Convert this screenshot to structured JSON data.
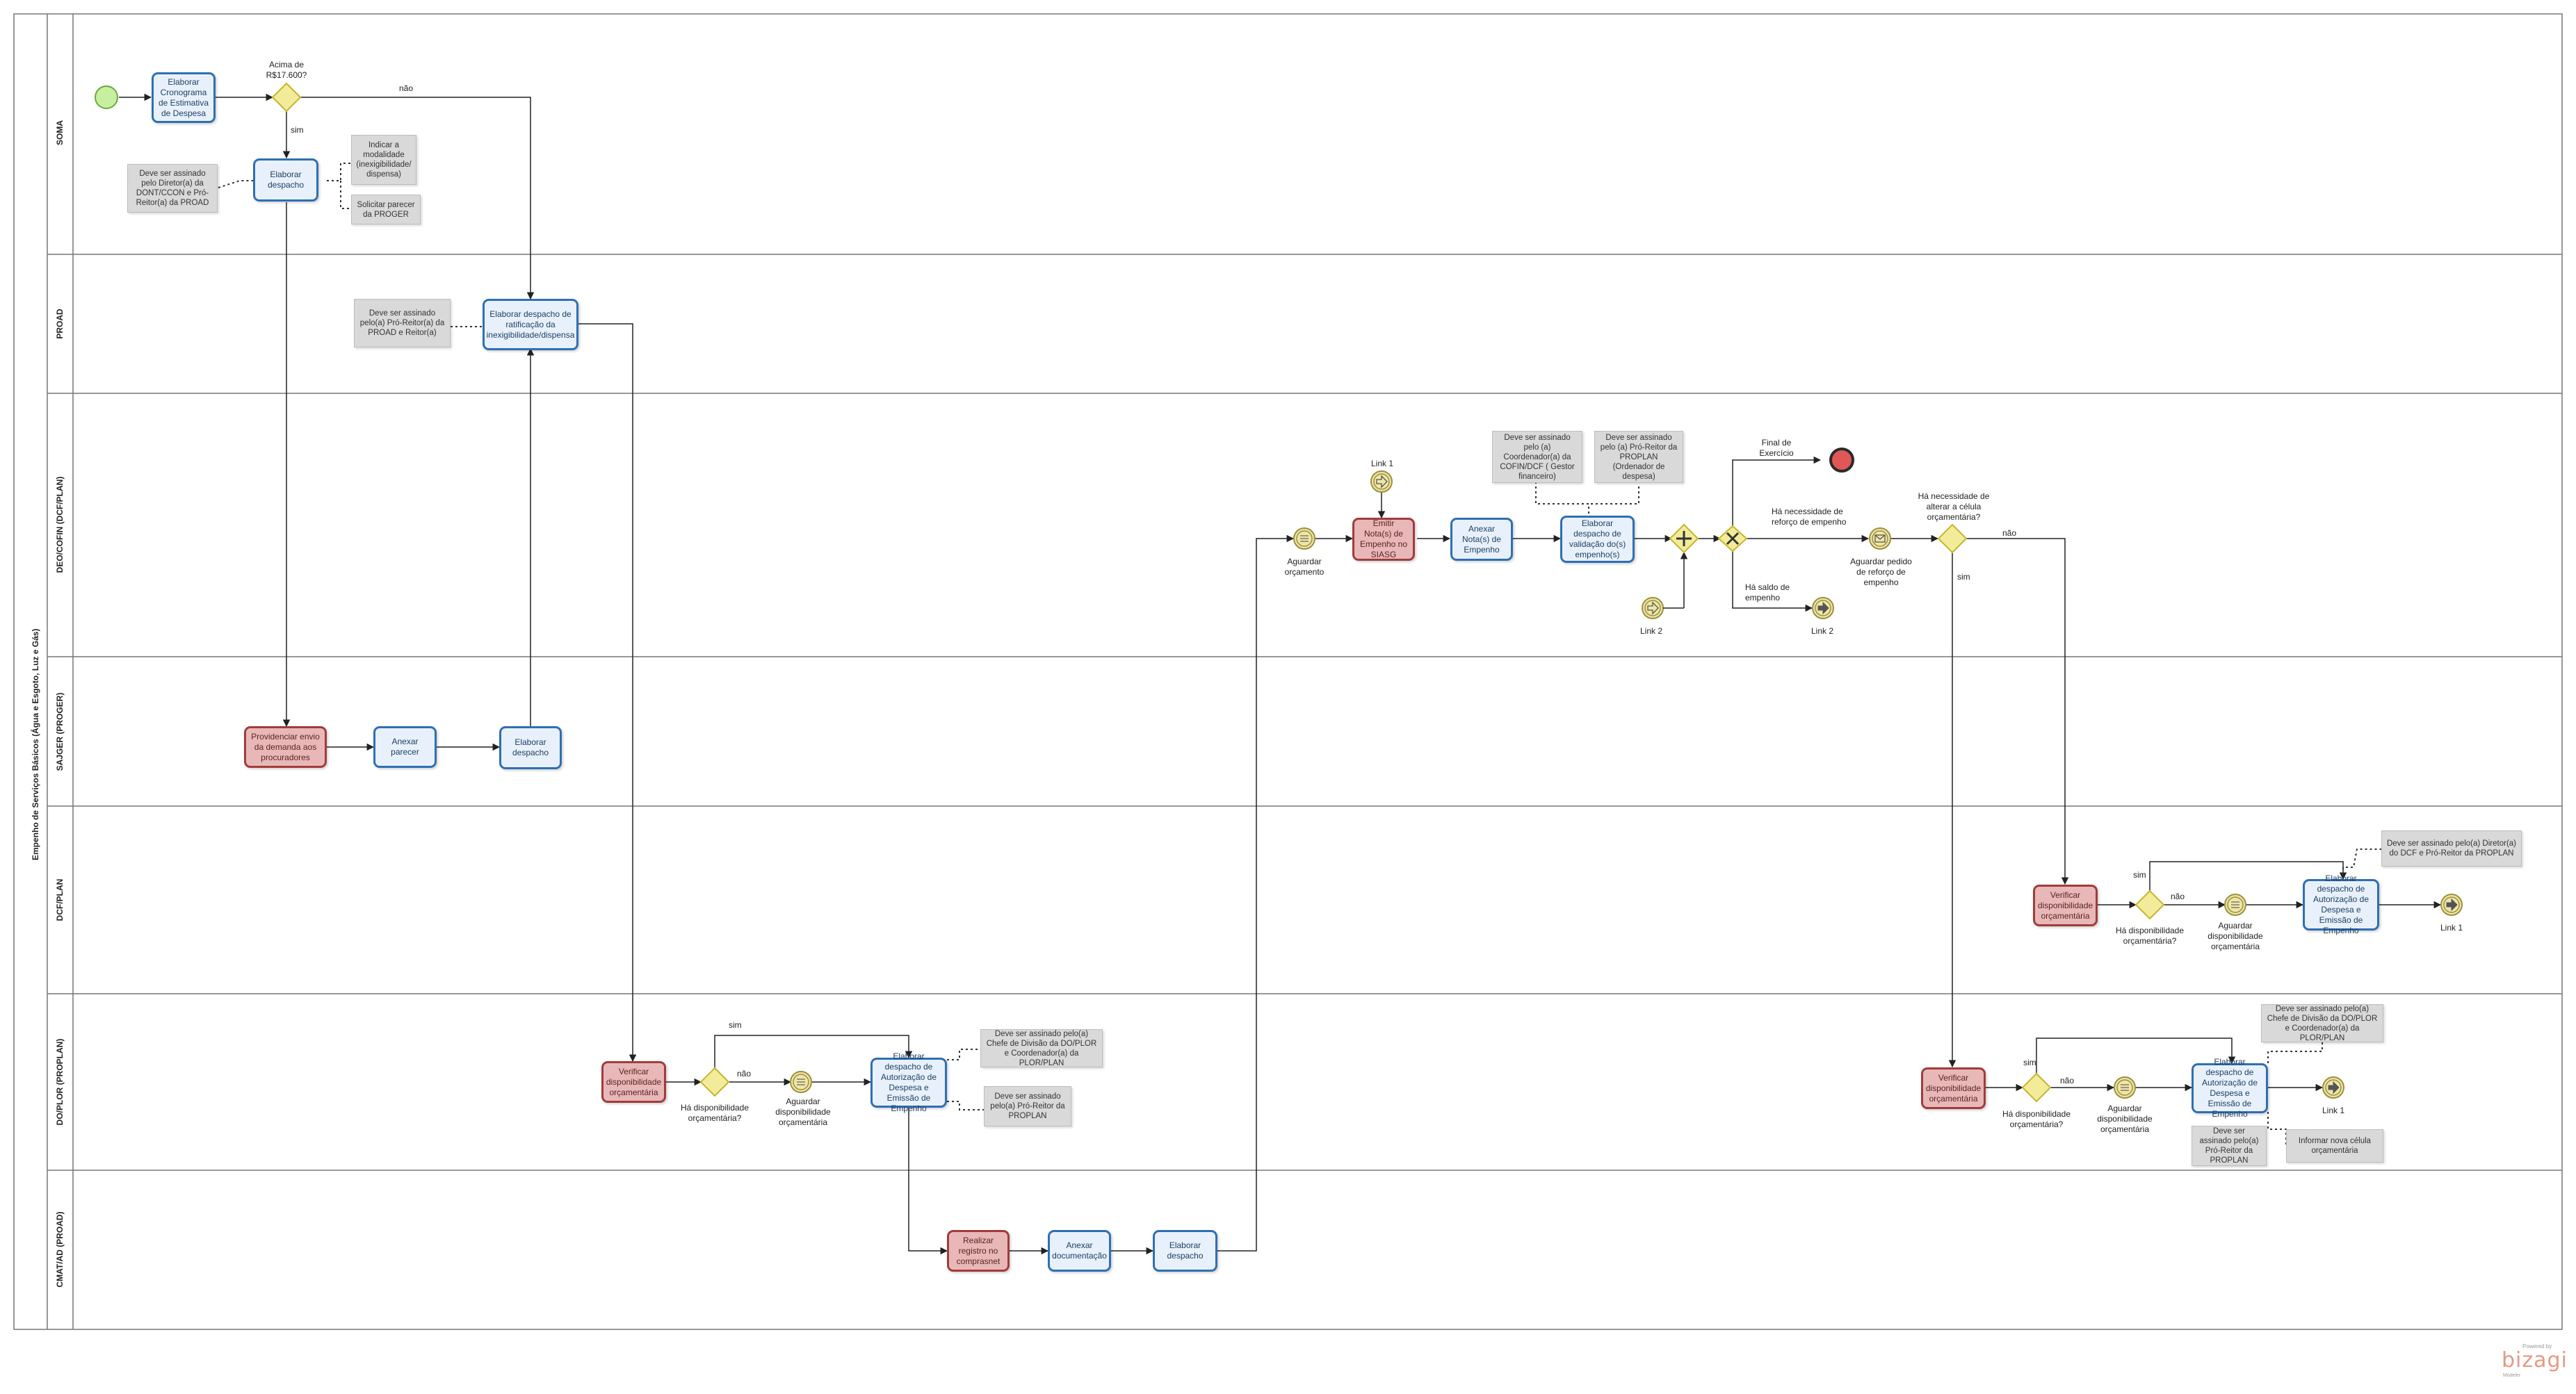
{
  "pool": {
    "name": "Empenho de Serviços Básicos (Água e Esgoto, Luz e Gás)"
  },
  "lanes": [
    {
      "name": "SOMA"
    },
    {
      "name": "PROAD"
    },
    {
      "name": "DEO/COFIN (DCF/PLAN)"
    },
    {
      "name": "SAJGER (PROGER)"
    },
    {
      "name": "DCF/PLAN"
    },
    {
      "name": "DO/PLOR (PROPLAN)"
    },
    {
      "name": "CMAT/AD (PROAD)"
    }
  ],
  "tasks": {
    "t1": "Elaborar Cronograma de Estimativa de Despesa",
    "t2": "Elaborar despacho",
    "t3": "Elaborar despacho de ratificação da inexigibilidade/dispensa",
    "t4": "Providenciar envio da demanda aos procuradores",
    "t5": "Anexar parecer",
    "t6": "Elaborar despacho",
    "t7": "Emitir Nota(s) de Empenho no SIASG",
    "t8": "Anexar Nota(s) de Empenho",
    "t9": "Elaborar despacho de validação do(s) empenho(s)",
    "t10": "Verificar disponibilidade orçamentária",
    "t11": "Elaborar despacho de Autorização de Despesa e Emissão de Empenho",
    "t12": "Verificar disponibilidade orçamentária",
    "t13": "Elaborar despacho de Autorização de Despesa e Emissão de Empenho",
    "t14": "Verificar disponibilidade orçamentária",
    "t15": "Elaborar despacho de Autorização de Despesa e Emissão de Empenho",
    "t16": "Realizar registro no comprasnet",
    "t17": "Anexar documentação",
    "t18": "Elaborar despacho"
  },
  "annotations": {
    "a1": "Deve ser assinado pelo Diretor(a) da DONT/CCON e Pró-Reitor(a) da PROAD",
    "a2": "Indicar a modalidade (inexigibilidade/ dispensa)",
    "a3": "Solicitar parecer da PROGER",
    "a4": "Deve ser assinado pelo(a) Pró-Reitor(a) da PROAD e Reitor(a)",
    "a5": "Deve ser assinado pelo (a) Coordenador(a) da COFIN/DCF ( Gestor financeiro)",
    "a6": "Deve ser assinado pelo (a) Pró-Reitor da PROPLAN (Ordenador de despesa)",
    "a7": "Deve ser assinado pelo(a) Diretor(a) do DCF e Pró-Reitor da PROPLAN",
    "a8": "Deve ser assinado pelo(a) Chefe de Divisão da DO/PLOR e Coordenador(a) da PLOR/PLAN",
    "a9": "Deve ser assinado pelo(a) Pró-Reitor da PROPLAN",
    "a10": "Deve ser assinado pelo(a) Chefe de Divisão da DO/PLOR e Coordenador(a) da PLOR/PLAN",
    "a11": "Deve ser assinado pelo(a) Pró-Reitor da PROPLAN",
    "a12": "Informar nova célula orçamentária"
  },
  "labels": {
    "g1_q": "Acima de R$17.600?",
    "yes": "sim",
    "no": "não",
    "link1": "Link 1",
    "link2": "Link 2",
    "wait_budget": "Aguardar orçamento",
    "wait_avail": "Aguardar disponibilidade orçamentária",
    "avail_q": "Há disponibilidade orçamentária?",
    "end_ex": "Final de Exercício",
    "need_reinforce": "Há necessidade de reforço de empenho",
    "wait_reinforce": "Aguardar pedido de reforço de empenho",
    "has_balance": "Há saldo de empenho",
    "change_cell_q": "Há necessidade de alterar a célula orçamentária?"
  },
  "branding": {
    "powered": "Powered by",
    "name": "bizagi",
    "sub": "Modeler"
  },
  "colors": {
    "task_border": "#2f6fb3",
    "task_fill": "#e8f1fb",
    "red_task_border": "#a33b3b",
    "red_task_fill": "#e8b8b8",
    "gateway": "#f2ec9a",
    "start": "#c6f0a0",
    "end": "#e05757"
  }
}
